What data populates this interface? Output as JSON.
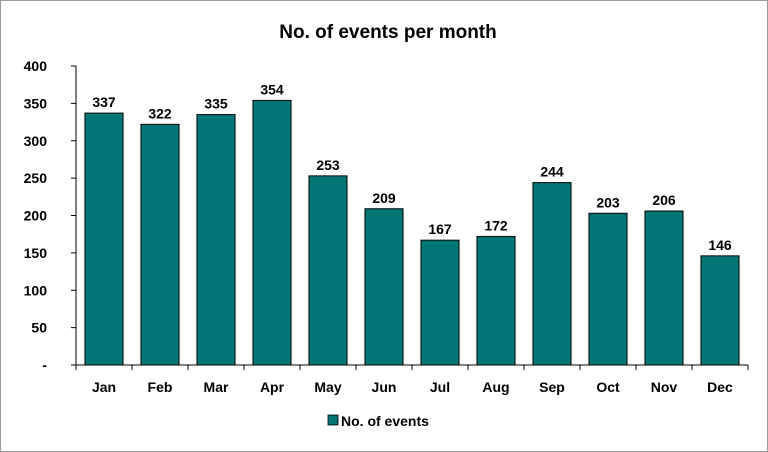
{
  "chart_data": {
    "type": "bar",
    "title": "No. of events per month",
    "categories": [
      "Jan",
      "Feb",
      "Mar",
      "Apr",
      "May",
      "Jun",
      "Jul",
      "Aug",
      "Sep",
      "Oct",
      "Nov",
      "Dec"
    ],
    "series": [
      {
        "name": "No. of events",
        "values": [
          337,
          322,
          335,
          354,
          253,
          209,
          167,
          172,
          244,
          203,
          206,
          146
        ]
      }
    ],
    "ylim": [
      0,
      400
    ],
    "yticks": [
      0,
      50,
      100,
      150,
      200,
      250,
      300,
      350,
      400
    ],
    "ytick_labels": [
      "-",
      "50",
      "100",
      "150",
      "200",
      "250",
      "300",
      "350",
      "400"
    ],
    "grid": false,
    "legend_position": "bottom",
    "bar_color": "#007576",
    "bar_edge_color": "#000000"
  }
}
